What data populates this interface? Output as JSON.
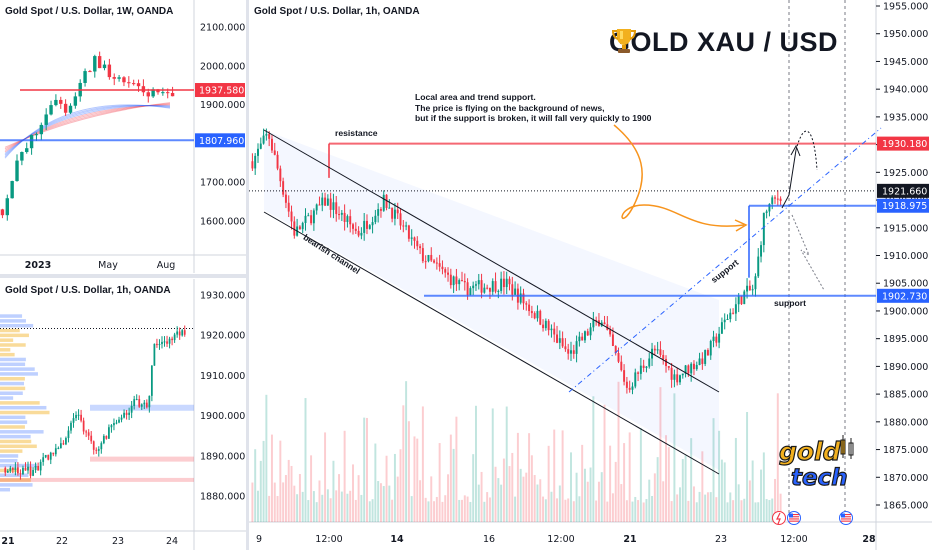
{
  "headline": {
    "left": "GOLD",
    "trophy_icon": "trophy-icon",
    "right": "XAU / USD"
  },
  "main_chart": {
    "title": "Gold Spot / U.S. Dollar, 1h, OANDA",
    "annotation_lines": [
      "Local area and trend support.",
      "The price is flying on the background of news,",
      "but if the support is broken, it will fall very quickly to 1900"
    ],
    "labels": {
      "resistance": "resistance",
      "bearish_channel": "bearish channel",
      "support_trend": "support",
      "support_level": "support"
    },
    "price_tags": [
      {
        "text": "1930.180",
        "value": 1930.18,
        "color": "#f23645"
      },
      {
        "text": "1921.660",
        "value": 1921.66,
        "color": "#131722"
      },
      {
        "text": "1918.975",
        "value": 1918.975,
        "color": "#2962ff"
      },
      {
        "text": "1902.730",
        "value": 1902.73,
        "color": "#2962ff"
      }
    ],
    "y_axis_ticks": [
      "1955.000",
      "1950.000",
      "1945.000",
      "1940.000",
      "1935.000",
      "1930.000",
      "1925.000",
      "1920.000",
      "1915.000",
      "1910.000",
      "1905.000",
      "1900.000",
      "1895.000",
      "1890.000",
      "1885.000",
      "1880.000",
      "1875.000",
      "1870.000",
      "1865.000"
    ],
    "x_axis_ticks": [
      {
        "text": "9",
        "bold": false
      },
      {
        "text": "12:00",
        "bold": false
      },
      {
        "text": "14",
        "bold": true
      },
      {
        "text": "16",
        "bold": false
      },
      {
        "text": "12:00",
        "bold": false
      },
      {
        "text": "21",
        "bold": true
      },
      {
        "text": "23",
        "bold": false
      },
      {
        "text": "12:00",
        "bold": false
      },
      {
        "text": "28",
        "bold": true
      }
    ],
    "event_icons": [
      "lightning-icon",
      "us-flag-icon",
      "us-flag-icon"
    ],
    "colors": {
      "up": "#089981",
      "down": "#f23645",
      "resistance": "#f23645",
      "support": "#2962ff"
    }
  },
  "weekly_chart": {
    "title": "Gold Spot / U.S. Dollar, 1W, OANDA",
    "y_axis_ticks": [
      "2100.000",
      "2000.000",
      "1900.000",
      "1700.000",
      "1600.000"
    ],
    "price_tags": [
      {
        "text": "1937.580",
        "color": "#f23645"
      },
      {
        "text": "1807.960",
        "color": "#2962ff"
      }
    ],
    "x_axis_ticks": [
      {
        "text": "2023",
        "bold": true
      },
      {
        "text": "May",
        "bold": false
      },
      {
        "text": "Aug",
        "bold": false
      }
    ]
  },
  "hourly_chart": {
    "title": "Gold Spot / U.S. Dollar, 1h, OANDA",
    "y_axis_ticks": [
      "1930.000",
      "1920.000",
      "1910.000",
      "1900.000",
      "1890.000",
      "1880.000"
    ],
    "x_axis_ticks": [
      {
        "text": "21",
        "bold": true
      },
      {
        "text": "22",
        "bold": false
      },
      {
        "text": "23",
        "bold": false
      },
      {
        "text": "24",
        "bold": false
      }
    ]
  },
  "logo": {
    "line1": "gold",
    "line2": "tech"
  },
  "chart_data": {
    "type": "candlestick",
    "symbol": "XAU/USD",
    "timeframe": "1h",
    "ylim": [
      1862,
      1957
    ],
    "resistance": 1930.18,
    "support_levels": [
      1918.975,
      1902.73
    ],
    "last_price": 1921.66,
    "key_path": [
      {
        "x": "Aug 9",
        "y": 1932
      },
      {
        "x": "Aug 10",
        "y": 1914
      },
      {
        "x": "Aug 14",
        "y": 1908
      },
      {
        "x": "Aug 16",
        "y": 1897
      },
      {
        "x": "Aug 18",
        "y": 1885
      },
      {
        "x": "Aug 21",
        "y": 1890
      },
      {
        "x": "Aug 22",
        "y": 1905
      },
      {
        "x": "Aug 23",
        "y": 1918
      },
      {
        "x": "Aug 24",
        "y": 1920
      }
    ]
  }
}
